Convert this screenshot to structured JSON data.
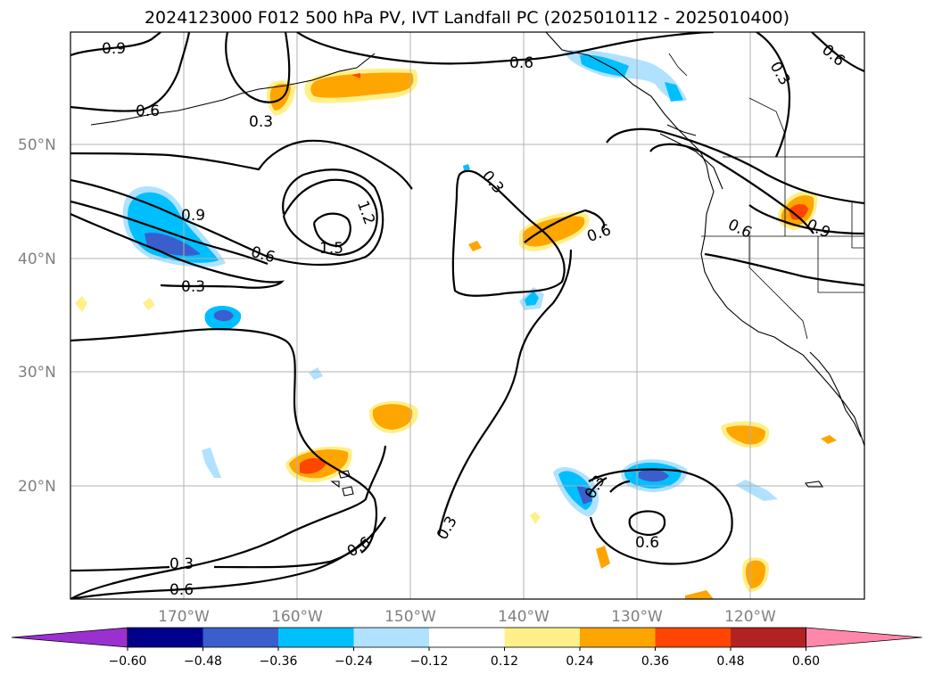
{
  "title": "2024123000 F012 500 hPa PV, IVT Landfall PC (2025010112 - 2025010400)",
  "map": {
    "lat_labels": [
      "50°N",
      "40°N",
      "30°N",
      "20°N"
    ],
    "lon_labels": [
      "170°W",
      "160°W",
      "150°W",
      "140°W",
      "130°W",
      "120°W"
    ],
    "grid": true,
    "extent": {
      "lon_min": -180,
      "lon_max": -110,
      "lat_min": 10,
      "lat_max": 60
    }
  },
  "contour_labels": [
    {
      "id": "c09-nw",
      "text": "0.9"
    },
    {
      "id": "c06-nw",
      "text": "0.6"
    },
    {
      "id": "c03-aleut",
      "text": "0.3"
    },
    {
      "id": "c06-top",
      "text": "0.6"
    },
    {
      "id": "c03-ne",
      "text": "0.3"
    },
    {
      "id": "c06-ne",
      "text": "0.6"
    },
    {
      "id": "c09-w",
      "text": "0.9"
    },
    {
      "id": "c12-low",
      "text": "1.2"
    },
    {
      "id": "c15-low",
      "text": "1.5"
    },
    {
      "id": "c06-w",
      "text": "0.6"
    },
    {
      "id": "c03-w",
      "text": "0.3"
    },
    {
      "id": "c03-mid",
      "text": "0.3"
    },
    {
      "id": "c06-mid",
      "text": "0.6"
    },
    {
      "id": "c06-coast",
      "text": "0.6"
    },
    {
      "id": "c09-coast",
      "text": "0.9"
    },
    {
      "id": "c03-se",
      "text": "0.3"
    },
    {
      "id": "c06-se",
      "text": "0.6"
    },
    {
      "id": "c06-s",
      "text": "0.6"
    },
    {
      "id": "c03-s",
      "text": "0.3"
    },
    {
      "id": "c03-sw",
      "text": "0.3"
    },
    {
      "id": "c06-sw",
      "text": "0.6"
    }
  ],
  "colorbar": {
    "ticks": [
      "−0.60",
      "−0.48",
      "−0.36",
      "−0.24",
      "−0.12",
      "0.12",
      "0.24",
      "0.36",
      "0.48",
      "0.60"
    ],
    "colors": [
      "#9b30d0",
      "#00008b",
      "#3a5fcd",
      "#00bfff",
      "#b0e2ff",
      "#ffffff",
      "#fff08a",
      "#ffa500",
      "#ff4500",
      "#b22222",
      "#ff88aa"
    ]
  },
  "colors": {
    "light_blue": "#b0e2ff",
    "blue": "#00bfff",
    "medium_blue": "#3a5fcd",
    "yellow": "#fff08a",
    "orange": "#ffa500",
    "red_orange": "#ff4500",
    "grid": "#b0b0b0",
    "axis_label": "#808080"
  }
}
